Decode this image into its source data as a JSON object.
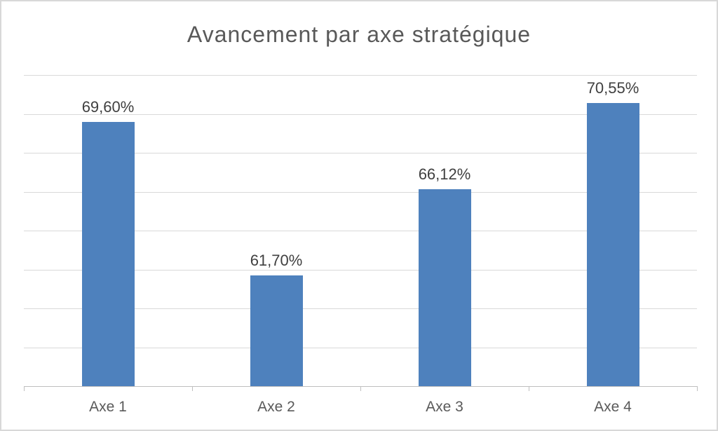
{
  "chart": {
    "title": "Avancement par axe stratégique"
  },
  "chart_data": {
    "type": "bar",
    "title": "Avancement par axe stratégique",
    "categories": [
      "Axe 1",
      "Axe 2",
      "Axe 3",
      "Axe 4"
    ],
    "values": [
      69.6,
      61.7,
      66.12,
      70.55
    ],
    "value_labels": [
      "69,60%",
      "61,70%",
      "66,12%",
      "70,55%"
    ],
    "xlabel": "",
    "ylabel": "",
    "ylim": [
      56,
      72
    ],
    "gridline_step": 2,
    "grid": true,
    "legend_position": "none",
    "y_axis_labels_visible": false,
    "colors": {
      "bar": "#4E81BD",
      "gridline": "#D9D9D9",
      "axis_line": "#BFBFBF",
      "title_text": "#595959",
      "value_label_text": "#404040",
      "category_label_text": "#595959",
      "border": "#D8D8D8"
    }
  }
}
